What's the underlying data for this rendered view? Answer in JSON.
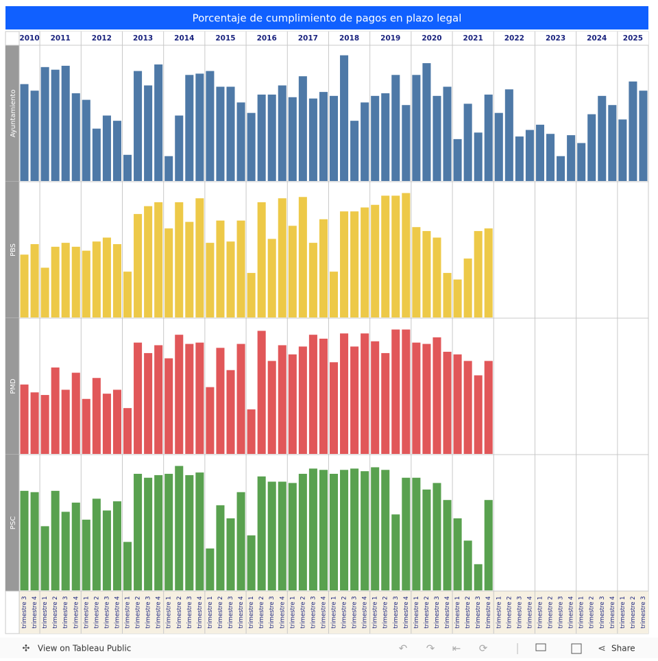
{
  "chart_data": {
    "type": "bar",
    "title": "Porcentaje de cumplimiento de pagos en plazo legal",
    "ylim": [
      0,
      100
    ],
    "groups": [
      {
        "label": "2010",
        "categories": [
          "trimestre 3",
          "trimestre 4"
        ]
      },
      {
        "label": "2011",
        "categories": [
          "trimestre 1",
          "trimestre 2",
          "trimestre 3",
          "trimestre 4"
        ]
      },
      {
        "label": "2012",
        "categories": [
          "trimestre 1",
          "trimestre 2",
          "trimestre 3",
          "trimestre 4"
        ]
      },
      {
        "label": "2013",
        "categories": [
          "trimestre 1",
          "trimestre 2",
          "trimestre 3",
          "trimestre 4"
        ]
      },
      {
        "label": "2014",
        "categories": [
          "trimestre 1",
          "trimestre 2",
          "trimestre 3",
          "trimestre 4"
        ]
      },
      {
        "label": "2015",
        "categories": [
          "trimestre 1",
          "trimestre 2",
          "trimestre 3",
          "trimestre 4"
        ]
      },
      {
        "label": "2016",
        "categories": [
          "trimestre 1",
          "trimestre 2",
          "trimestre 3",
          "trimestre 4"
        ]
      },
      {
        "label": "2017",
        "categories": [
          "trimestre 1",
          "trimestre 2",
          "trimestre 3",
          "trimestre 4"
        ]
      },
      {
        "label": "2018",
        "categories": [
          "trimestre 1",
          "trimestre 2",
          "trimestre 3",
          "trimestre 4"
        ]
      },
      {
        "label": "2019",
        "categories": [
          "trimestre 1",
          "trimestre 2",
          "trimestre 3",
          "trimestre 4"
        ]
      },
      {
        "label": "2020",
        "categories": [
          "trimestre 1",
          "trimestre 2",
          "trimestre 3",
          "trimestre 4"
        ]
      },
      {
        "label": "2021",
        "categories": [
          "trimestre 1",
          "trimestre 2",
          "trimestre 3",
          "trimestre 4"
        ]
      },
      {
        "label": "2022",
        "categories": [
          "trimestre 1",
          "trimestre 2",
          "trimestre 3",
          "trimestre 4"
        ]
      },
      {
        "label": "2023",
        "categories": [
          "trimestre 1",
          "trimestre 2",
          "trimestre 3",
          "trimestre 4"
        ]
      },
      {
        "label": "2024",
        "categories": [
          "trimestre 1",
          "trimestre 2",
          "trimestre 3",
          "trimestre 4"
        ]
      },
      {
        "label": "2025",
        "categories": [
          "trimestre 1",
          "trimestre 2",
          "trimestre 3"
        ]
      }
    ],
    "series": [
      {
        "name": "Ayuntamiento",
        "color": "#4e79a7",
        "values": [
          74,
          69,
          87,
          85,
          88,
          67,
          62,
          40,
          50,
          46,
          20,
          84,
          73,
          89,
          19,
          50,
          81,
          82,
          84,
          72,
          72,
          60,
          52,
          66,
          66,
          73,
          64,
          80,
          63,
          68,
          65,
          96,
          46,
          60,
          65,
          67,
          81,
          58,
          81,
          90,
          65,
          72,
          32,
          59,
          37,
          66,
          52,
          70,
          34,
          39,
          43,
          36,
          19,
          35,
          29,
          51,
          65,
          58,
          47,
          76,
          69
        ]
      },
      {
        "name": "PBS",
        "color": "#edc948",
        "values": [
          48,
          56,
          38,
          54,
          57,
          54,
          51,
          58,
          61,
          56,
          35,
          79,
          85,
          88,
          68,
          88,
          73,
          91,
          57,
          74,
          58,
          74,
          34,
          88,
          60,
          91,
          70,
          92,
          57,
          75,
          35,
          81,
          81,
          84,
          86,
          93,
          93,
          95,
          69,
          66,
          61,
          34,
          29,
          45,
          66,
          68,
          null,
          null,
          null,
          null,
          null,
          null,
          null,
          null,
          null,
          null,
          null,
          null,
          null,
          null,
          null
        ]
      },
      {
        "name": "PMD",
        "color": "#e15759",
        "values": [
          53,
          47,
          45,
          66,
          49,
          62,
          42,
          58,
          46,
          49,
          35,
          85,
          77,
          83,
          73,
          91,
          84,
          85,
          51,
          81,
          64,
          84,
          34,
          94,
          71,
          83,
          76,
          82,
          91,
          88,
          70,
          92,
          82,
          92,
          86,
          77,
          95,
          95,
          85,
          84,
          89,
          78,
          76,
          71,
          60,
          71,
          null,
          null,
          null,
          null,
          null,
          null,
          null,
          null,
          null,
          null,
          null,
          null,
          null,
          null,
          null
        ]
      },
      {
        "name": "PSC",
        "color": "#59a14f",
        "values": [
          76,
          75,
          49,
          76,
          60,
          67,
          54,
          70,
          61,
          68,
          37,
          89,
          86,
          88,
          89,
          95,
          88,
          90,
          32,
          65,
          55,
          75,
          42,
          87,
          83,
          83,
          82,
          89,
          93,
          92,
          89,
          92,
          93,
          91,
          94,
          92,
          58,
          86,
          86,
          77,
          82,
          69,
          55,
          38,
          20,
          69,
          null,
          null,
          null,
          null,
          null,
          null,
          null,
          null,
          null,
          null,
          null,
          null,
          null,
          null,
          null
        ]
      }
    ]
  },
  "footer": {
    "view": "View on Tableau Public",
    "share": "Share"
  }
}
